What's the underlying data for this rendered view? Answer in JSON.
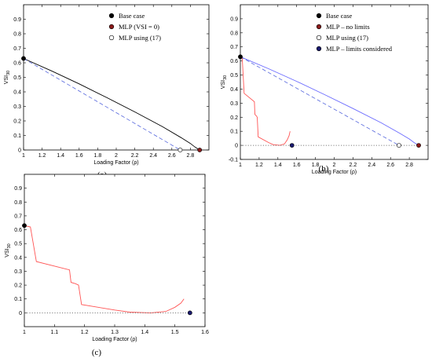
{
  "chart_data": [
    {
      "type": "line",
      "panel_label": "(a)",
      "xlabel": "Loading Factor (ρ)",
      "ylabel_main": "VSI",
      "ylabel_sub": "30",
      "xlim": [
        1,
        3
      ],
      "ylim": [
        0,
        1
      ],
      "xticks": [
        1,
        1.2,
        1.4,
        1.6,
        1.8,
        2,
        2.2,
        2.4,
        2.6,
        2.8
      ],
      "xtick_labels": [
        "1",
        "1.2",
        "1.4",
        "1.6",
        "1.8",
        "2",
        "2.2",
        "2.4",
        "2.6",
        "2.8"
      ],
      "yticks": [
        0,
        0.1,
        0.2,
        0.3,
        0.4,
        0.5,
        0.6,
        0.7,
        0.8,
        0.9
      ],
      "ytick_labels": [
        "0",
        "0.1",
        "0.2",
        "0.3",
        "0.4",
        "0.5",
        "0.6",
        "0.7",
        "0.8",
        "0.9"
      ],
      "legend_position": "top-right",
      "legend": [
        {
          "label": "Base case",
          "marker": "filled-black"
        },
        {
          "label": "MLP (VSI = 0)",
          "marker": "filled-red"
        },
        {
          "label": "MLP using (17)",
          "marker": "open-circle"
        }
      ],
      "series": [
        {
          "style": "solid",
          "color": "#000000",
          "points": [
            [
              1,
              0.63
            ],
            [
              1.3,
              0.545
            ],
            [
              1.6,
              0.455
            ],
            [
              1.9,
              0.36
            ],
            [
              2.2,
              0.262
            ],
            [
              2.5,
              0.16
            ],
            [
              2.7,
              0.085
            ],
            [
              2.8,
              0.045
            ],
            [
              2.85,
              0.02
            ],
            [
              2.9,
              0.0
            ]
          ]
        },
        {
          "style": "dashed",
          "color": "#5566dd",
          "points": [
            [
              1,
              0.63
            ],
            [
              2.69,
              0.0
            ]
          ]
        }
      ],
      "markers": [
        {
          "x": 1.0,
          "y": 0.63,
          "kind": "filled-black"
        },
        {
          "x": 2.69,
          "y": 0.0,
          "kind": "open-circle"
        },
        {
          "x": 2.9,
          "y": 0.0,
          "kind": "filled-red"
        }
      ]
    },
    {
      "type": "line",
      "panel_label": "(b)",
      "xlabel": "Loading Factor (ρ)",
      "ylabel_main": "VSI",
      "ylabel_sub": "30",
      "xlim": [
        1,
        3
      ],
      "ylim": [
        -0.1,
        1
      ],
      "xticks": [
        1,
        1.2,
        1.4,
        1.6,
        1.8,
        2,
        2.2,
        2.4,
        2.6,
        2.8
      ],
      "xtick_labels": [
        "1",
        "1.2",
        "1.4",
        "1.6",
        "1.8",
        "2",
        "2.2",
        "2.4",
        "2.6",
        "2.8"
      ],
      "yticks": [
        -0.1,
        0,
        0.1,
        0.2,
        0.3,
        0.4,
        0.5,
        0.6,
        0.7,
        0.8,
        0.9
      ],
      "ytick_labels": [
        "-0.1",
        "0",
        "0.1",
        "0.2",
        "0.3",
        "0.4",
        "0.5",
        "0.6",
        "0.7",
        "0.8",
        "0.9"
      ],
      "legend_position": "top-right",
      "legend": [
        {
          "label": "Base case",
          "marker": "filled-black"
        },
        {
          "label": "MLP – no limits",
          "marker": "filled-red"
        },
        {
          "label": "MLP using (17)",
          "marker": "open-circle"
        },
        {
          "label": "MLP – limits considered",
          "marker": "filled-blue"
        }
      ],
      "series": [
        {
          "style": "solid",
          "color": "#6b6bff",
          "points": [
            [
              1,
              0.63
            ],
            [
              1.3,
              0.545
            ],
            [
              1.6,
              0.455
            ],
            [
              1.9,
              0.36
            ],
            [
              2.2,
              0.262
            ],
            [
              2.5,
              0.16
            ],
            [
              2.7,
              0.085
            ],
            [
              2.8,
              0.045
            ],
            [
              2.85,
              0.02
            ],
            [
              2.9,
              0.0
            ]
          ]
        },
        {
          "style": "dashed",
          "color": "#5566dd",
          "points": [
            [
              1,
              0.63
            ],
            [
              2.69,
              0.0
            ]
          ]
        },
        {
          "style": "solid",
          "color": "#ff5555",
          "points": [
            [
              1,
              0.63
            ],
            [
              1.02,
              0.62
            ],
            [
              1.04,
              0.37
            ],
            [
              1.15,
              0.31
            ],
            [
              1.155,
              0.22
            ],
            [
              1.17,
              0.21
            ],
            [
              1.18,
              0.2
            ],
            [
              1.19,
              0.06
            ],
            [
              1.3,
              0.02
            ],
            [
              1.35,
              0.005
            ],
            [
              1.42,
              0.0
            ],
            [
              1.47,
              0.01
            ],
            [
              1.5,
              0.04
            ],
            [
              1.52,
              0.07
            ],
            [
              1.53,
              0.1
            ]
          ]
        },
        {
          "style": "dotted",
          "color": "#555555",
          "points": [
            [
              1,
              0.0
            ],
            [
              2.9,
              0.0
            ]
          ]
        }
      ],
      "markers": [
        {
          "x": 1.0,
          "y": 0.63,
          "kind": "filled-black"
        },
        {
          "x": 1.55,
          "y": 0.0,
          "kind": "filled-blue"
        },
        {
          "x": 2.69,
          "y": 0.0,
          "kind": "open-circle"
        },
        {
          "x": 2.9,
          "y": 0.0,
          "kind": "filled-red"
        }
      ]
    },
    {
      "type": "line",
      "panel_label": "(c)",
      "xlabel": "Loading Factor (ρ)",
      "ylabel_main": "VSI",
      "ylabel_sub": "30",
      "xlim": [
        1,
        1.6
      ],
      "ylim": [
        -0.1,
        1
      ],
      "xticks": [
        1,
        1.1,
        1.2,
        1.3,
        1.4,
        1.5,
        1.6
      ],
      "xtick_labels": [
        "1",
        "1.1",
        "1.2",
        "1.3",
        "1.4",
        "1.5",
        "1.6"
      ],
      "yticks": [
        0,
        0.1,
        0.2,
        0.3,
        0.4,
        0.5,
        0.6,
        0.7,
        0.8,
        0.9
      ],
      "ytick_labels": [
        "0",
        "0.1",
        "0.2",
        "0.3",
        "0.4",
        "0.5",
        "0.6",
        "0.7",
        "0.8",
        "0.9"
      ],
      "legend_position": "none",
      "legend": [],
      "series": [
        {
          "style": "solid",
          "color": "#ff5555",
          "points": [
            [
              1,
              0.63
            ],
            [
              1.02,
              0.62
            ],
            [
              1.04,
              0.37
            ],
            [
              1.15,
              0.31
            ],
            [
              1.155,
              0.22
            ],
            [
              1.17,
              0.21
            ],
            [
              1.18,
              0.2
            ],
            [
              1.19,
              0.06
            ],
            [
              1.3,
              0.02
            ],
            [
              1.35,
              0.005
            ],
            [
              1.42,
              0.0
            ],
            [
              1.47,
              0.01
            ],
            [
              1.5,
              0.04
            ],
            [
              1.52,
              0.07
            ],
            [
              1.53,
              0.1
            ]
          ]
        },
        {
          "style": "dotted",
          "color": "#555555",
          "points": [
            [
              1,
              0.0
            ],
            [
              1.55,
              0.0
            ]
          ]
        }
      ],
      "markers": [
        {
          "x": 1.0,
          "y": 0.63,
          "kind": "filled-black"
        },
        {
          "x": 1.55,
          "y": 0.0,
          "kind": "filled-blue"
        }
      ]
    }
  ],
  "colors": {
    "filled-black": "#000000",
    "filled-red": "#8b1a1a",
    "filled-blue": "#1a1a6e",
    "open-circle-stroke": "#000000",
    "axis": "#000000"
  }
}
